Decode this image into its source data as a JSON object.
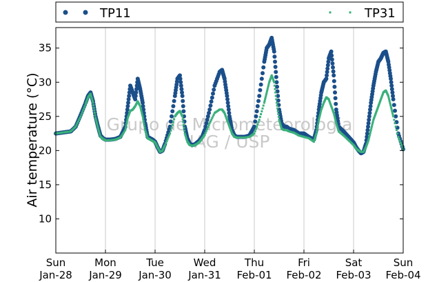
{
  "chart_data": {
    "type": "scatter",
    "ylabel": "Air temperature (°C)",
    "xlabel": "",
    "ylim": [
      5,
      38
    ],
    "xlim": [
      0,
      7
    ],
    "yticks": [
      10,
      15,
      20,
      25,
      30,
      35
    ],
    "x_ticks": [
      {
        "day": 0,
        "weekday": "Sun",
        "date": "Jan-28"
      },
      {
        "day": 1,
        "weekday": "Mon",
        "date": "Jan-29"
      },
      {
        "day": 2,
        "weekday": "Tue",
        "date": "Jan-30"
      },
      {
        "day": 3,
        "weekday": "Wed",
        "date": "Jan-31"
      },
      {
        "day": 4,
        "weekday": "Thu",
        "date": "Feb-01"
      },
      {
        "day": 5,
        "weekday": "Fri",
        "date": "Feb-02"
      },
      {
        "day": 6,
        "weekday": "Sat",
        "date": "Feb-03"
      },
      {
        "day": 7,
        "weekday": "Sun",
        "date": "Feb-04"
      }
    ],
    "grid": "vertical",
    "legend_position": "top",
    "watermark": [
      "Grupo de Micrometeorologia",
      "IAG / USP"
    ],
    "series": [
      {
        "name": "TP11",
        "color": "#1b4f8a",
        "marker": "circle",
        "x": [
          0.0,
          0.1,
          0.2,
          0.3,
          0.4,
          0.5,
          0.6,
          0.65,
          0.7,
          0.75,
          0.8,
          0.85,
          0.9,
          0.95,
          1.0,
          1.1,
          1.2,
          1.3,
          1.4,
          1.45,
          1.5,
          1.55,
          1.6,
          1.65,
          1.7,
          1.75,
          1.8,
          1.85,
          1.9,
          1.95,
          2.0,
          2.05,
          2.1,
          2.15,
          2.2,
          2.3,
          2.4,
          2.45,
          2.5,
          2.55,
          2.6,
          2.65,
          2.7,
          2.75,
          2.8,
          2.85,
          2.9,
          2.95,
          3.0,
          3.1,
          3.2,
          3.3,
          3.35,
          3.4,
          3.45,
          3.5,
          3.55,
          3.6,
          3.65,
          3.7,
          3.75,
          3.8,
          3.9,
          4.0,
          4.1,
          4.2,
          4.25,
          4.3,
          4.35,
          4.4,
          4.45,
          4.5,
          4.55,
          4.6,
          4.65,
          4.7,
          4.8,
          4.9,
          5.0,
          5.1,
          5.2,
          5.25,
          5.3,
          5.35,
          5.4,
          5.45,
          5.5,
          5.55,
          5.6,
          5.65,
          5.7,
          5.8,
          5.9,
          6.0,
          6.05,
          6.1,
          6.15,
          6.2,
          6.25,
          6.3,
          6.35,
          6.4,
          6.45,
          6.5,
          6.55,
          6.6,
          6.65,
          6.7,
          6.75,
          6.8,
          6.9,
          7.0
        ],
        "y": [
          22.5,
          22.6,
          22.7,
          22.8,
          23.5,
          25.2,
          27.0,
          28.0,
          28.5,
          27.2,
          25.0,
          23.5,
          22.2,
          21.8,
          21.6,
          21.6,
          21.7,
          22.0,
          23.5,
          26.5,
          29.5,
          28.5,
          27.5,
          30.5,
          29.0,
          27.0,
          24.0,
          22.0,
          21.8,
          21.6,
          21.3,
          20.5,
          19.8,
          20.0,
          21.0,
          23.5,
          28.0,
          30.5,
          31.0,
          28.0,
          23.5,
          21.8,
          21.0,
          20.8,
          20.9,
          21.2,
          21.5,
          22.0,
          23.0,
          26.0,
          29.5,
          31.5,
          31.8,
          30.5,
          28.0,
          25.0,
          23.0,
          22.2,
          22.0,
          22.0,
          22.0,
          22.0,
          22.2,
          23.5,
          28.0,
          33.0,
          35.0,
          35.5,
          36.5,
          34.5,
          30.0,
          26.0,
          24.0,
          23.5,
          23.5,
          23.2,
          23.0,
          22.5,
          22.5,
          22.0,
          21.6,
          23.0,
          26.0,
          28.5,
          30.0,
          30.5,
          33.5,
          34.5,
          31.0,
          26.0,
          23.5,
          22.8,
          22.0,
          21.2,
          20.5,
          20.0,
          19.6,
          19.8,
          21.0,
          24.0,
          27.0,
          29.5,
          31.5,
          33.0,
          33.5,
          34.3,
          34.5,
          33.0,
          30.5,
          27.5,
          22.5,
          20.2
        ]
      },
      {
        "name": "TP31",
        "color": "#3ab07a",
        "marker": "square",
        "x": [
          0.0,
          0.1,
          0.2,
          0.3,
          0.4,
          0.5,
          0.6,
          0.65,
          0.7,
          0.75,
          0.8,
          0.85,
          0.9,
          0.95,
          1.0,
          1.1,
          1.2,
          1.3,
          1.4,
          1.45,
          1.5,
          1.55,
          1.6,
          1.65,
          1.7,
          1.75,
          1.8,
          1.85,
          1.9,
          1.95,
          2.0,
          2.05,
          2.1,
          2.15,
          2.2,
          2.3,
          2.4,
          2.45,
          2.5,
          2.55,
          2.6,
          2.65,
          2.7,
          2.75,
          2.8,
          2.85,
          2.9,
          2.95,
          3.0,
          3.1,
          3.2,
          3.3,
          3.35,
          3.4,
          3.45,
          3.5,
          3.55,
          3.6,
          3.65,
          3.7,
          3.75,
          3.8,
          3.9,
          4.0,
          4.1,
          4.2,
          4.25,
          4.3,
          4.35,
          4.4,
          4.45,
          4.5,
          4.55,
          4.6,
          4.65,
          4.7,
          4.8,
          4.9,
          5.0,
          5.1,
          5.2,
          5.25,
          5.3,
          5.35,
          5.4,
          5.45,
          5.5,
          5.55,
          5.6,
          5.65,
          5.7,
          5.8,
          5.9,
          6.0,
          6.05,
          6.1,
          6.15,
          6.2,
          6.25,
          6.3,
          6.35,
          6.4,
          6.45,
          6.5,
          6.55,
          6.6,
          6.65,
          6.7,
          6.75,
          6.8,
          6.9,
          7.0
        ],
        "y": [
          22.5,
          22.6,
          22.7,
          22.8,
          23.5,
          25.0,
          26.8,
          27.8,
          28.3,
          27.0,
          24.8,
          23.3,
          22.0,
          21.7,
          21.5,
          21.5,
          21.6,
          21.9,
          23.0,
          24.8,
          25.8,
          26.0,
          26.5,
          27.2,
          26.5,
          25.0,
          23.0,
          21.8,
          21.6,
          21.4,
          21.2,
          20.5,
          19.8,
          20.0,
          20.8,
          22.5,
          25.0,
          25.5,
          25.8,
          25.0,
          22.5,
          21.3,
          20.8,
          20.7,
          20.8,
          21.0,
          21.3,
          21.8,
          22.3,
          24.0,
          25.5,
          26.0,
          26.0,
          25.5,
          24.5,
          23.5,
          22.5,
          22.0,
          21.9,
          21.9,
          21.9,
          21.9,
          22.0,
          22.5,
          24.5,
          27.0,
          28.5,
          30.0,
          31.0,
          30.0,
          27.0,
          24.5,
          23.2,
          23.0,
          23.0,
          22.8,
          22.6,
          22.2,
          22.0,
          21.8,
          21.3,
          22.5,
          24.5,
          26.0,
          27.0,
          27.8,
          27.5,
          26.5,
          25.5,
          24.0,
          22.8,
          22.2,
          21.5,
          20.8,
          20.3,
          20.0,
          19.8,
          19.8,
          20.5,
          21.5,
          23.0,
          24.5,
          25.5,
          26.5,
          27.5,
          28.5,
          28.8,
          28.0,
          26.5,
          25.0,
          22.0,
          20.2
        ]
      }
    ]
  }
}
